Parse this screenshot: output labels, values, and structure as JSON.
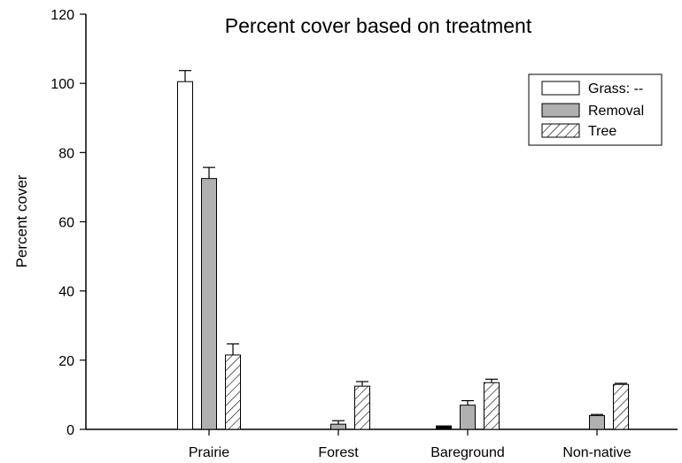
{
  "chart_data": {
    "type": "bar",
    "title": "Percent cover based on treatment",
    "xlabel": "",
    "ylabel": "Percent cover",
    "ylim": [
      0,
      120
    ],
    "yticks": [
      0,
      20,
      40,
      60,
      80,
      100,
      120
    ],
    "categories": [
      "Prairie",
      "Forest",
      "Bareground",
      "Non-native"
    ],
    "series": [
      {
        "name": "Grass: --",
        "fill": "#ffffff",
        "pattern": "none",
        "values": [
          100.5,
          0,
          1,
          0
        ],
        "errors": [
          3.2,
          0,
          0,
          0
        ]
      },
      {
        "name": "Removal",
        "fill": "#b0b0b0",
        "pattern": "none",
        "values": [
          72.5,
          1.5,
          7,
          4
        ],
        "errors": [
          3.2,
          1,
          1.3,
          0.3
        ]
      },
      {
        "name": "Tree",
        "fill": "#ffffff",
        "pattern": "hatch",
        "values": [
          21.5,
          12.5,
          13.5,
          13
        ],
        "errors": [
          3.2,
          1.3,
          1,
          0.3
        ]
      }
    ],
    "legend_position": "top-right",
    "grid": false,
    "colors": {
      "axis": "#000000",
      "removal": "#b0b0b0",
      "bareground_grass": "#000000"
    }
  }
}
